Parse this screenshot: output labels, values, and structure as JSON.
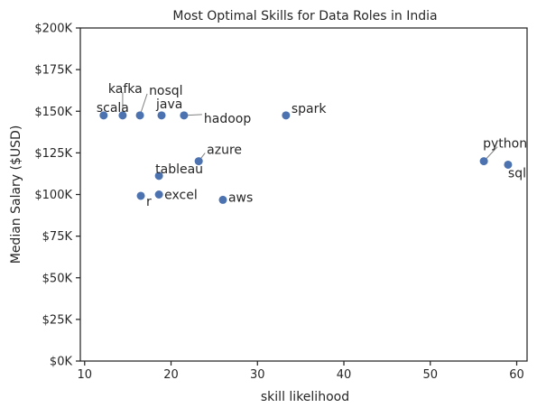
{
  "chart_data": {
    "type": "scatter",
    "title": "Most Optimal Skills for Data Roles in India",
    "xlabel": "skill likelihood",
    "ylabel": "Median Salary ($USD)",
    "xlim": [
      9.5,
      61.2
    ],
    "ylim": [
      0,
      200000
    ],
    "xticks": [
      10,
      20,
      30,
      40,
      50,
      60
    ],
    "yticks": [
      0,
      25000,
      50000,
      75000,
      100000,
      125000,
      150000,
      175000,
      200000
    ],
    "ytick_labels": [
      "$0K",
      "$25K",
      "$50K",
      "$75K",
      "$100K",
      "$125K",
      "$150K",
      "$175K",
      "$200K"
    ],
    "grid": false,
    "marker_color": "#4c72b0",
    "points": [
      {
        "label": "scala",
        "x": 12.2,
        "y": 147500
      },
      {
        "label": "kafka",
        "x": 14.4,
        "y": 147500
      },
      {
        "label": "nosql",
        "x": 16.4,
        "y": 147500
      },
      {
        "label": "java",
        "x": 18.9,
        "y": 147500
      },
      {
        "label": "hadoop",
        "x": 21.5,
        "y": 147500
      },
      {
        "label": "spark",
        "x": 33.3,
        "y": 147500
      },
      {
        "label": "azure",
        "x": 23.2,
        "y": 120000
      },
      {
        "label": "tableau",
        "x": 18.6,
        "y": 111200
      },
      {
        "label": "r",
        "x": 16.5,
        "y": 99200
      },
      {
        "label": "excel",
        "x": 18.6,
        "y": 100000
      },
      {
        "label": "aws",
        "x": 26.0,
        "y": 96800
      },
      {
        "label": "python",
        "x": 56.2,
        "y": 120000
      },
      {
        "label": "sql",
        "x": 59.0,
        "y": 117900
      }
    ]
  }
}
